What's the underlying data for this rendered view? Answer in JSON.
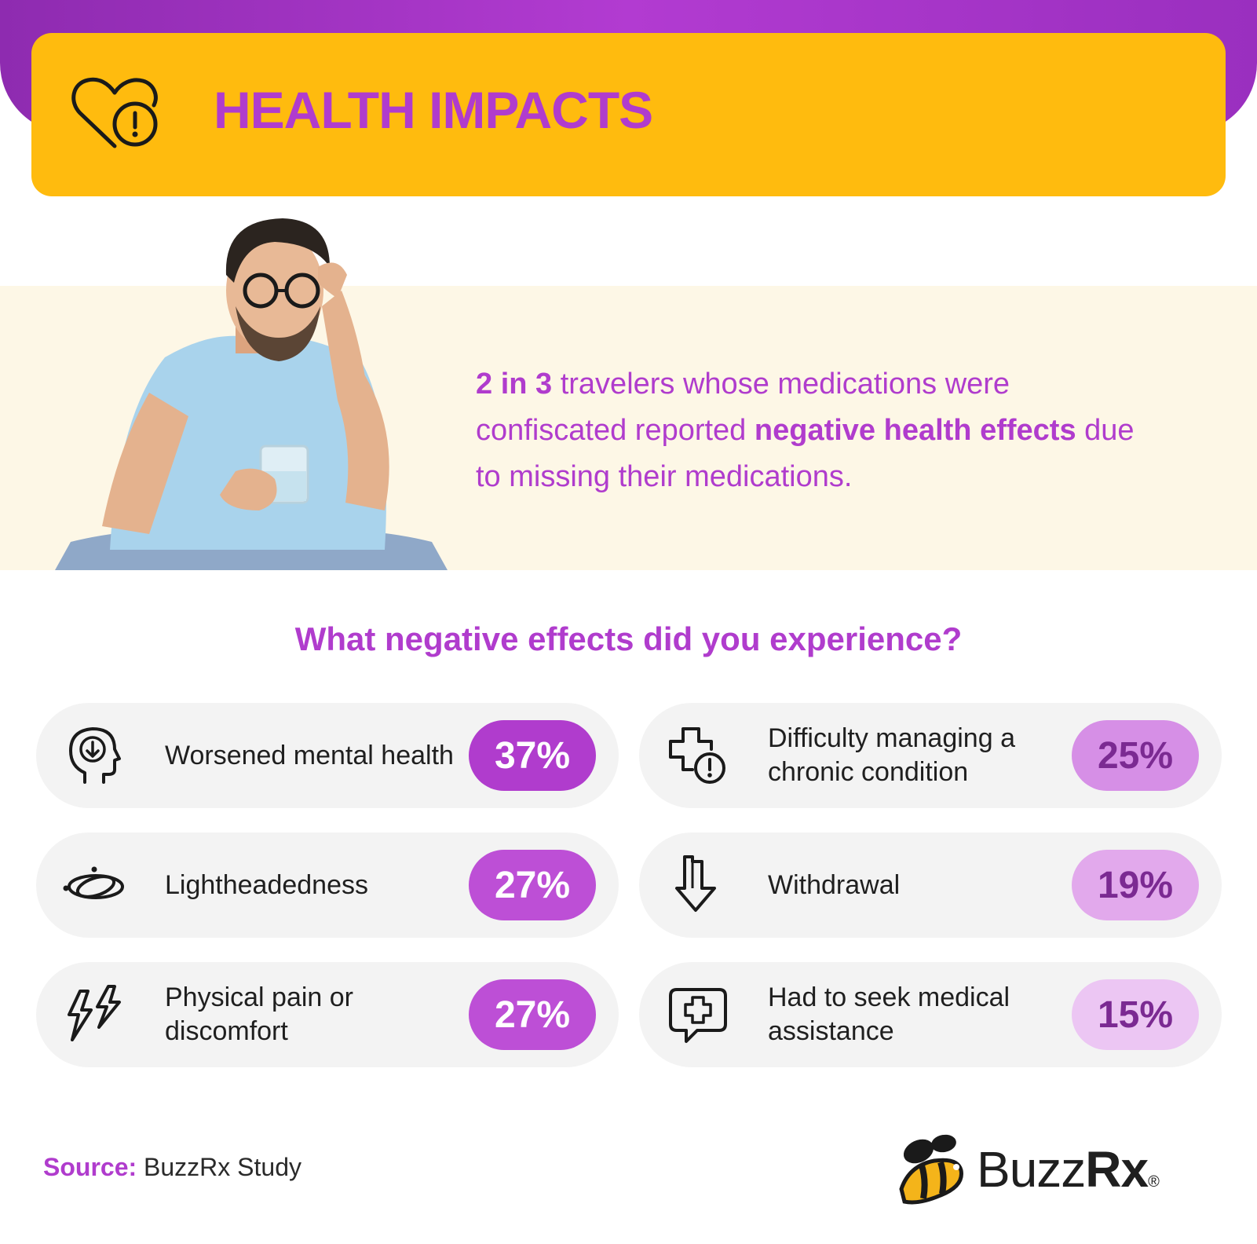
{
  "header": {
    "title": "HEALTH IMPACTS",
    "icon": "heart-alert-icon"
  },
  "stat": {
    "part1": "2 in 3",
    "part2": " travelers whose medications were confiscated reported ",
    "part3": "negative health effects",
    "part4": " due to missing their medications."
  },
  "question": "What negative effects did you experience?",
  "effects": [
    {
      "label": "Worsened mental health",
      "value": "37%",
      "icon": "head-down-arrow-icon"
    },
    {
      "label": "Difficulty managing a chronic condition",
      "value": "25%",
      "icon": "medical-cross-alert-icon"
    },
    {
      "label": "Lightheadedness",
      "value": "27%",
      "icon": "dizzy-orbit-icon"
    },
    {
      "label": "Withdrawal",
      "value": "19%",
      "icon": "arrow-down-icon"
    },
    {
      "label": "Physical pain or discomfort",
      "value": "27%",
      "icon": "lightning-icon"
    },
    {
      "label": "Had to seek medical assistance",
      "value": "15%",
      "icon": "chat-medical-cross-icon"
    }
  ],
  "source": {
    "label": "Source:",
    "text": " BuzzRx Study"
  },
  "logo": {
    "name_a": "Buzz",
    "name_b": "Rx",
    "mark": "®"
  },
  "colors": {
    "purple": "#b03ccd",
    "yellow": "#ffbb0e",
    "cream": "#fdf7e6",
    "pill_37": "#b03ccd",
    "pill_27": "#bd4fd6",
    "pill_25": "#d68fe6",
    "pill_19": "#e2a9ec",
    "pill_15": "#ecc6f3"
  }
}
